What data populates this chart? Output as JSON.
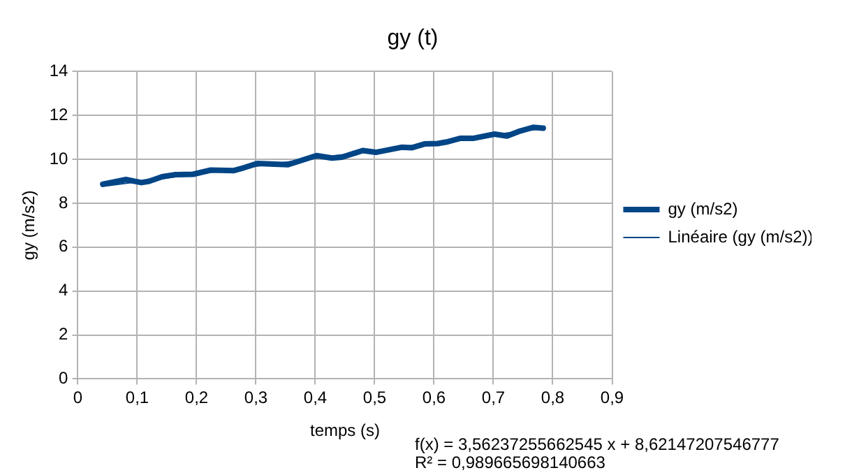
{
  "chart_data": {
    "type": "line",
    "title": "gy (t)",
    "xlabel": "temps (s)",
    "ylabel": "gy (m/s2)",
    "x": [
      0.042,
      0.081,
      0.107,
      0.12,
      0.142,
      0.163,
      0.194,
      0.224,
      0.263,
      0.28,
      0.302,
      0.354,
      0.367,
      0.402,
      0.428,
      0.445,
      0.48,
      0.502,
      0.545,
      0.563,
      0.584,
      0.606,
      0.623,
      0.645,
      0.667,
      0.702,
      0.723,
      0.745,
      0.767,
      0.784
    ],
    "series": [
      {
        "name": "gy (m/s2)",
        "color": "#004586",
        "values": [
          8.87,
          9.08,
          8.94,
          9.0,
          9.21,
          9.3,
          9.32,
          9.51,
          9.49,
          9.62,
          9.81,
          9.76,
          9.87,
          10.17,
          10.06,
          10.1,
          10.4,
          10.32,
          10.55,
          10.53,
          10.7,
          10.72,
          10.8,
          10.96,
          10.96,
          11.15,
          11.06,
          11.29,
          11.46,
          11.42
        ]
      },
      {
        "name": "Linéaire (gy (m/s2))",
        "type": "line",
        "color": "#004586",
        "x": [
          0.042,
          0.784
        ],
        "values": [
          8.77,
          11.41
        ]
      }
    ],
    "xlim": [
      0,
      0.9
    ],
    "xticks": [
      {
        "value": 0,
        "label": "0"
      },
      {
        "value": 0.1,
        "label": "0,1"
      },
      {
        "value": 0.2,
        "label": "0,2"
      },
      {
        "value": 0.3,
        "label": "0,3"
      },
      {
        "value": 0.4,
        "label": "0,4"
      },
      {
        "value": 0.5,
        "label": "0,5"
      },
      {
        "value": 0.6,
        "label": "0,6"
      },
      {
        "value": 0.7,
        "label": "0,7"
      },
      {
        "value": 0.8,
        "label": "0,8"
      },
      {
        "value": 0.9,
        "label": "0,9"
      }
    ],
    "ylim": [
      0,
      14
    ],
    "yticks": [
      0,
      2,
      4,
      6,
      8,
      10,
      12,
      14
    ],
    "grid": true,
    "legend": "right",
    "marker": "none",
    "line_style": "solid",
    "annotations": [
      "f(x) = 3,56237255662545 x + 8,62147207546777",
      "R² = 0,989665698140663"
    ]
  }
}
